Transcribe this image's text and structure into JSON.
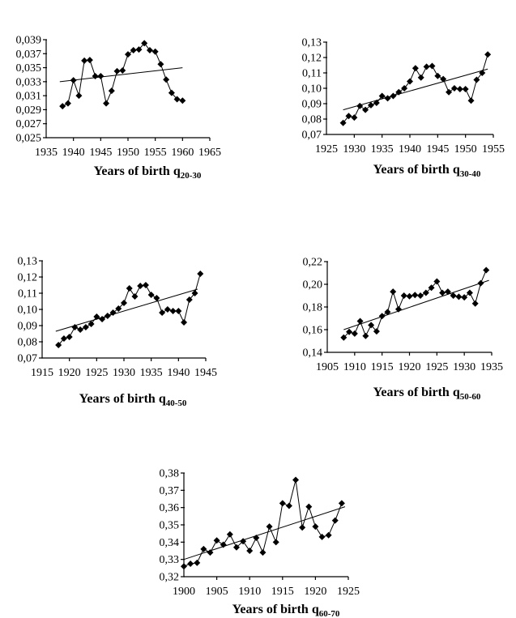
{
  "page": {
    "background": "#ffffff",
    "ink": "#000000"
  },
  "chart_data": [
    {
      "id": "q20-30",
      "type": "line",
      "marker": "diamond",
      "xlabel": "Years of birth q",
      "xlabel_subscript": "20-30",
      "grid": false,
      "legend": false,
      "xlim": [
        1935,
        1965
      ],
      "xticks": [
        1935,
        1940,
        1945,
        1950,
        1955,
        1960,
        1965
      ],
      "ylim": [
        0.025,
        0.039
      ],
      "ytick_values": [
        0.039,
        0.037,
        0.035,
        0.033,
        0.031,
        0.029,
        0.027,
        0.025
      ],
      "ytick_labels": [
        "0,039",
        "0,037",
        "0,035",
        "0,033",
        "0,031",
        "0,029",
        "0,027",
        "0,025"
      ],
      "x": [
        1938,
        1939,
        1940,
        1941,
        1942,
        1943,
        1944,
        1945,
        1946,
        1947,
        1948,
        1949,
        1950,
        1951,
        1952,
        1953,
        1954,
        1955,
        1956,
        1957,
        1958,
        1959,
        1960
      ],
      "y": [
        0.0295,
        0.0299,
        0.0332,
        0.031,
        0.036,
        0.0361,
        0.0338,
        0.0338,
        0.0299,
        0.0317,
        0.0345,
        0.0346,
        0.0369,
        0.0375,
        0.0376,
        0.0385,
        0.0375,
        0.0373,
        0.0355,
        0.0333,
        0.0314,
        0.0305,
        0.0303
      ],
      "trend": {
        "x1": 1937.5,
        "y1": 0.033,
        "x2": 1960,
        "y2": 0.035
      }
    },
    {
      "id": "q30-40",
      "type": "line",
      "marker": "diamond",
      "xlabel": "Years of birth q",
      "xlabel_subscript": "30-40",
      "grid": false,
      "legend": false,
      "xlim": [
        1925,
        1955
      ],
      "xticks": [
        1925,
        1930,
        1935,
        1940,
        1945,
        1950,
        1955
      ],
      "ylim": [
        0.07,
        0.13
      ],
      "ytick_values": [
        0.13,
        0.12,
        0.11,
        0.1,
        0.09,
        0.08,
        0.07
      ],
      "ytick_labels": [
        "0,13",
        "0,12",
        "0,11",
        "0,10",
        "0,09",
        "0,08",
        "0,07"
      ],
      "x": [
        1928,
        1929,
        1930,
        1931,
        1932,
        1933,
        1934,
        1935,
        1936,
        1937,
        1938,
        1939,
        1940,
        1941,
        1942,
        1943,
        1944,
        1945,
        1946,
        1947,
        1948,
        1949,
        1950,
        1951,
        1952,
        1953,
        1954
      ],
      "y": [
        0.0775,
        0.082,
        0.081,
        0.0885,
        0.086,
        0.089,
        0.0905,
        0.095,
        0.0935,
        0.095,
        0.0975,
        0.1,
        0.1045,
        0.113,
        0.107,
        0.114,
        0.1145,
        0.108,
        0.106,
        0.0975,
        0.1,
        0.0995,
        0.0995,
        0.092,
        0.1055,
        0.11,
        0.122
      ],
      "trend": {
        "x1": 1928,
        "y1": 0.086,
        "x2": 1954,
        "y2": 0.1125
      }
    },
    {
      "id": "q40-50",
      "type": "line",
      "marker": "diamond",
      "xlabel": "Years of birth q",
      "xlabel_subscript": "40-50",
      "grid": false,
      "legend": false,
      "xlim": [
        1915,
        1945
      ],
      "xticks": [
        1915,
        1920,
        1925,
        1930,
        1935,
        1940,
        1945
      ],
      "ylim": [
        0.07,
        0.13
      ],
      "ytick_values": [
        0.13,
        0.12,
        0.11,
        0.1,
        0.09,
        0.08,
        0.07
      ],
      "ytick_labels": [
        "0,13",
        "0,12",
        "0,11",
        "0,10",
        "0,09",
        "0,08",
        "0,07"
      ],
      "x": [
        1918,
        1919,
        1920,
        1921,
        1922,
        1923,
        1924,
        1925,
        1926,
        1927,
        1928,
        1929,
        1930,
        1931,
        1932,
        1933,
        1934,
        1935,
        1936,
        1937,
        1938,
        1939,
        1940,
        1941,
        1942,
        1943,
        1944
      ],
      "y": [
        0.078,
        0.082,
        0.083,
        0.089,
        0.0875,
        0.089,
        0.091,
        0.0955,
        0.094,
        0.096,
        0.098,
        0.1005,
        0.104,
        0.113,
        0.108,
        0.1145,
        0.115,
        0.109,
        0.107,
        0.098,
        0.1,
        0.099,
        0.099,
        0.092,
        0.106,
        0.11,
        0.122
      ],
      "trend": {
        "x1": 1917.5,
        "y1": 0.0865,
        "x2": 1943.5,
        "y2": 0.1125
      }
    },
    {
      "id": "q50-60",
      "type": "line",
      "marker": "diamond",
      "xlabel": "Years of birth q",
      "xlabel_subscript": "50-60",
      "grid": false,
      "legend": false,
      "xlim": [
        1905,
        1935
      ],
      "xticks": [
        1905,
        1910,
        1915,
        1920,
        1925,
        1930,
        1935
      ],
      "ylim": [
        0.14,
        0.22
      ],
      "ytick_values": [
        0.22,
        0.2,
        0.18,
        0.16,
        0.14
      ],
      "ytick_labels": [
        "0,22",
        "0,20",
        "0,18",
        "0,16",
        "0,14"
      ],
      "x": [
        1908,
        1909,
        1910,
        1911,
        1912,
        1913,
        1914,
        1915,
        1916,
        1917,
        1918,
        1919,
        1920,
        1921,
        1922,
        1923,
        1924,
        1925,
        1926,
        1927,
        1928,
        1929,
        1930,
        1931,
        1932,
        1933,
        1934
      ],
      "y": [
        0.153,
        0.158,
        0.1565,
        0.1675,
        0.1545,
        0.164,
        0.1585,
        0.172,
        0.1755,
        0.1935,
        0.178,
        0.19,
        0.1895,
        0.1905,
        0.19,
        0.1925,
        0.197,
        0.2025,
        0.1925,
        0.1935,
        0.19,
        0.189,
        0.1885,
        0.1925,
        0.183,
        0.201,
        0.2125
      ],
      "trend": {
        "x1": 1908,
        "y1": 0.16,
        "x2": 1934.5,
        "y2": 0.2035
      }
    },
    {
      "id": "q60-70",
      "type": "line",
      "marker": "diamond",
      "xlabel": "Years of birth q",
      "xlabel_subscript": "60-70",
      "grid": false,
      "legend": false,
      "xlim": [
        1900,
        1925
      ],
      "xticks": [
        1900,
        1905,
        1910,
        1915,
        1920,
        1925
      ],
      "ylim": [
        0.32,
        0.38
      ],
      "ytick_values": [
        0.38,
        0.37,
        0.36,
        0.35,
        0.34,
        0.33,
        0.32
      ],
      "ytick_labels": [
        "0,38",
        "0,37",
        "0,36",
        "0,35",
        "0,34",
        "0,33",
        "0,32"
      ],
      "x": [
        1900,
        1901,
        1902,
        1903,
        1904,
        1905,
        1906,
        1907,
        1908,
        1909,
        1910,
        1911,
        1912,
        1913,
        1914,
        1915,
        1916,
        1917,
        1918,
        1919,
        1920,
        1921,
        1922,
        1923,
        1924
      ],
      "y": [
        0.326,
        0.3275,
        0.328,
        0.336,
        0.334,
        0.341,
        0.3385,
        0.3445,
        0.337,
        0.3405,
        0.335,
        0.3425,
        0.334,
        0.349,
        0.34,
        0.3625,
        0.361,
        0.376,
        0.3485,
        0.3605,
        0.349,
        0.343,
        0.344,
        0.3525,
        0.3625
      ],
      "trend": {
        "x1": 1900,
        "y1": 0.33,
        "x2": 1924.5,
        "y2": 0.3605
      }
    }
  ]
}
